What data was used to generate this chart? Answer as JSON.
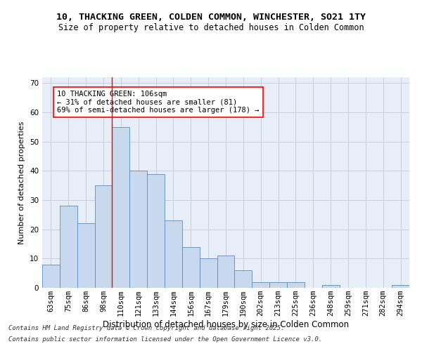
{
  "title": "10, THACKING GREEN, COLDEN COMMON, WINCHESTER, SO21 1TY",
  "subtitle": "Size of property relative to detached houses in Colden Common",
  "xlabel": "Distribution of detached houses by size in Colden Common",
  "ylabel": "Number of detached properties",
  "categories": [
    "63sqm",
    "75sqm",
    "86sqm",
    "98sqm",
    "110sqm",
    "121sqm",
    "133sqm",
    "144sqm",
    "156sqm",
    "167sqm",
    "179sqm",
    "190sqm",
    "202sqm",
    "213sqm",
    "225sqm",
    "236sqm",
    "248sqm",
    "259sqm",
    "271sqm",
    "282sqm",
    "294sqm"
  ],
  "values": [
    8,
    28,
    22,
    35,
    55,
    40,
    39,
    23,
    14,
    10,
    11,
    6,
    2,
    2,
    2,
    0,
    1,
    0,
    0,
    0,
    1
  ],
  "bar_color": "#c8d9ee",
  "bar_edge_color": "#5a8cc0",
  "red_line_index": 4,
  "annotation_text": "10 THACKING GREEN: 106sqm\n← 31% of detached houses are smaller (81)\n69% of semi-detached houses are larger (178) →",
  "annotation_box_color": "white",
  "annotation_box_edge_color": "red",
  "ylim": [
    0,
    72
  ],
  "yticks": [
    0,
    10,
    20,
    30,
    40,
    50,
    60,
    70
  ],
  "grid_color": "#c8d0e0",
  "background_color": "#e8eef8",
  "footer_line1": "Contains HM Land Registry data © Crown copyright and database right 2025.",
  "footer_line2": "Contains public sector information licensed under the Open Government Licence v3.0.",
  "title_fontsize": 9.5,
  "subtitle_fontsize": 8.5,
  "xlabel_fontsize": 8.5,
  "ylabel_fontsize": 8,
  "tick_fontsize": 7.5,
  "annotation_fontsize": 7.5,
  "footer_fontsize": 6.5
}
